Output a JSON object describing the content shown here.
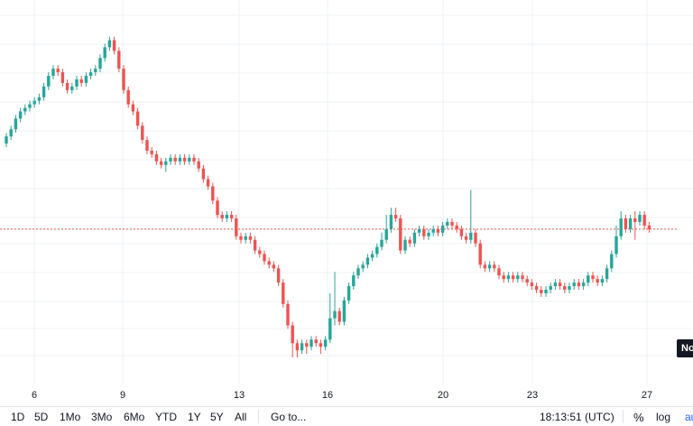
{
  "chart_data": {
    "type": "candlestick",
    "x_labels": [
      "6",
      "9",
      "13",
      "16",
      "20",
      "23",
      "27"
    ],
    "price_label_partial": "No",
    "y_scale": "normalized (price axis values not visible)",
    "candles": [
      [
        0.61,
        0.63,
        0.64,
        0.6
      ],
      [
        0.63,
        0.65,
        0.66,
        0.62
      ],
      [
        0.65,
        0.68,
        0.69,
        0.64
      ],
      [
        0.68,
        0.7,
        0.71,
        0.67
      ],
      [
        0.7,
        0.71,
        0.72,
        0.69
      ],
      [
        0.71,
        0.72,
        0.73,
        0.7
      ],
      [
        0.72,
        0.73,
        0.74,
        0.71
      ],
      [
        0.73,
        0.74,
        0.75,
        0.72
      ],
      [
        0.74,
        0.77,
        0.78,
        0.73
      ],
      [
        0.77,
        0.8,
        0.81,
        0.76
      ],
      [
        0.8,
        0.82,
        0.83,
        0.79
      ],
      [
        0.82,
        0.81,
        0.83,
        0.8
      ],
      [
        0.81,
        0.78,
        0.82,
        0.77
      ],
      [
        0.78,
        0.76,
        0.79,
        0.75
      ],
      [
        0.76,
        0.77,
        0.78,
        0.75
      ],
      [
        0.77,
        0.79,
        0.8,
        0.76
      ],
      [
        0.79,
        0.78,
        0.8,
        0.77
      ],
      [
        0.78,
        0.8,
        0.81,
        0.77
      ],
      [
        0.8,
        0.81,
        0.82,
        0.79
      ],
      [
        0.81,
        0.82,
        0.83,
        0.8
      ],
      [
        0.82,
        0.85,
        0.86,
        0.81
      ],
      [
        0.85,
        0.88,
        0.89,
        0.84
      ],
      [
        0.88,
        0.9,
        0.91,
        0.87
      ],
      [
        0.9,
        0.87,
        0.91,
        0.86
      ],
      [
        0.87,
        0.82,
        0.88,
        0.81
      ],
      [
        0.82,
        0.76,
        0.83,
        0.75
      ],
      [
        0.76,
        0.72,
        0.77,
        0.71
      ],
      [
        0.72,
        0.7,
        0.73,
        0.69
      ],
      [
        0.7,
        0.66,
        0.71,
        0.65
      ],
      [
        0.66,
        0.62,
        0.67,
        0.61
      ],
      [
        0.62,
        0.59,
        0.63,
        0.58
      ],
      [
        0.59,
        0.58,
        0.6,
        0.57
      ],
      [
        0.58,
        0.56,
        0.59,
        0.55
      ],
      [
        0.56,
        0.55,
        0.57,
        0.54
      ],
      [
        0.55,
        0.56,
        0.57,
        0.53
      ],
      [
        0.56,
        0.57,
        0.58,
        0.55
      ],
      [
        0.57,
        0.56,
        0.58,
        0.55
      ],
      [
        0.56,
        0.57,
        0.58,
        0.55
      ],
      [
        0.57,
        0.56,
        0.58,
        0.55
      ],
      [
        0.56,
        0.57,
        0.58,
        0.55
      ],
      [
        0.57,
        0.56,
        0.58,
        0.55
      ],
      [
        0.56,
        0.54,
        0.57,
        0.53
      ],
      [
        0.54,
        0.51,
        0.55,
        0.5
      ],
      [
        0.51,
        0.49,
        0.52,
        0.48
      ],
      [
        0.49,
        0.45,
        0.5,
        0.44
      ],
      [
        0.45,
        0.41,
        0.46,
        0.4
      ],
      [
        0.41,
        0.4,
        0.42,
        0.39
      ],
      [
        0.4,
        0.41,
        0.42,
        0.39
      ],
      [
        0.41,
        0.4,
        0.42,
        0.39
      ],
      [
        0.4,
        0.35,
        0.41,
        0.34
      ],
      [
        0.35,
        0.34,
        0.36,
        0.33
      ],
      [
        0.34,
        0.35,
        0.36,
        0.33
      ],
      [
        0.35,
        0.34,
        0.36,
        0.33
      ],
      [
        0.34,
        0.31,
        0.35,
        0.3
      ],
      [
        0.31,
        0.3,
        0.32,
        0.29
      ],
      [
        0.3,
        0.28,
        0.31,
        0.27
      ],
      [
        0.28,
        0.27,
        0.29,
        0.26
      ],
      [
        0.27,
        0.26,
        0.28,
        0.25
      ],
      [
        0.26,
        0.22,
        0.27,
        0.21
      ],
      [
        0.22,
        0.16,
        0.23,
        0.15
      ],
      [
        0.16,
        0.1,
        0.17,
        0.09
      ],
      [
        0.1,
        0.05,
        0.11,
        0.01
      ],
      [
        0.05,
        0.03,
        0.06,
        0.01
      ],
      [
        0.03,
        0.05,
        0.06,
        0.02
      ],
      [
        0.05,
        0.04,
        0.06,
        0.02
      ],
      [
        0.04,
        0.06,
        0.07,
        0.03
      ],
      [
        0.06,
        0.05,
        0.07,
        0.04
      ],
      [
        0.05,
        0.04,
        0.06,
        0.02
      ],
      [
        0.04,
        0.06,
        0.07,
        0.03
      ],
      [
        0.06,
        0.12,
        0.19,
        0.05
      ],
      [
        0.12,
        0.14,
        0.25,
        0.1
      ],
      [
        0.14,
        0.11,
        0.15,
        0.1
      ],
      [
        0.11,
        0.17,
        0.18,
        0.1
      ],
      [
        0.17,
        0.21,
        0.22,
        0.16
      ],
      [
        0.21,
        0.24,
        0.25,
        0.2
      ],
      [
        0.24,
        0.26,
        0.27,
        0.23
      ],
      [
        0.26,
        0.27,
        0.28,
        0.25
      ],
      [
        0.27,
        0.29,
        0.3,
        0.26
      ],
      [
        0.29,
        0.3,
        0.31,
        0.28
      ],
      [
        0.3,
        0.32,
        0.33,
        0.29
      ],
      [
        0.32,
        0.34,
        0.36,
        0.31
      ],
      [
        0.34,
        0.37,
        0.41,
        0.33
      ],
      [
        0.37,
        0.41,
        0.43,
        0.36
      ],
      [
        0.41,
        0.4,
        0.43,
        0.39
      ],
      [
        0.4,
        0.31,
        0.41,
        0.3
      ],
      [
        0.31,
        0.34,
        0.35,
        0.3
      ],
      [
        0.34,
        0.33,
        0.35,
        0.32
      ],
      [
        0.33,
        0.36,
        0.37,
        0.32
      ],
      [
        0.36,
        0.37,
        0.38,
        0.35
      ],
      [
        0.37,
        0.35,
        0.38,
        0.34
      ],
      [
        0.35,
        0.36,
        0.37,
        0.34
      ],
      [
        0.36,
        0.37,
        0.38,
        0.35
      ],
      [
        0.37,
        0.36,
        0.38,
        0.35
      ],
      [
        0.36,
        0.38,
        0.39,
        0.35
      ],
      [
        0.38,
        0.39,
        0.4,
        0.37
      ],
      [
        0.39,
        0.38,
        0.4,
        0.37
      ],
      [
        0.38,
        0.37,
        0.39,
        0.36
      ],
      [
        0.37,
        0.35,
        0.38,
        0.34
      ],
      [
        0.35,
        0.34,
        0.36,
        0.33
      ],
      [
        0.34,
        0.36,
        0.48,
        0.33
      ],
      [
        0.36,
        0.33,
        0.37,
        0.32
      ],
      [
        0.33,
        0.27,
        0.34,
        0.26
      ],
      [
        0.27,
        0.26,
        0.28,
        0.25
      ],
      [
        0.26,
        0.27,
        0.28,
        0.25
      ],
      [
        0.27,
        0.26,
        0.28,
        0.25
      ],
      [
        0.26,
        0.24,
        0.27,
        0.23
      ],
      [
        0.24,
        0.23,
        0.25,
        0.22
      ],
      [
        0.23,
        0.24,
        0.25,
        0.22
      ],
      [
        0.24,
        0.23,
        0.25,
        0.22
      ],
      [
        0.23,
        0.24,
        0.25,
        0.22
      ],
      [
        0.24,
        0.23,
        0.25,
        0.22
      ],
      [
        0.23,
        0.22,
        0.24,
        0.21
      ],
      [
        0.22,
        0.21,
        0.23,
        0.2
      ],
      [
        0.21,
        0.2,
        0.22,
        0.19
      ],
      [
        0.2,
        0.19,
        0.21,
        0.18
      ],
      [
        0.19,
        0.2,
        0.21,
        0.18
      ],
      [
        0.2,
        0.21,
        0.22,
        0.19
      ],
      [
        0.21,
        0.22,
        0.23,
        0.2
      ],
      [
        0.22,
        0.21,
        0.23,
        0.2
      ],
      [
        0.21,
        0.2,
        0.22,
        0.19
      ],
      [
        0.2,
        0.21,
        0.22,
        0.19
      ],
      [
        0.21,
        0.22,
        0.23,
        0.2
      ],
      [
        0.22,
        0.21,
        0.23,
        0.2
      ],
      [
        0.21,
        0.22,
        0.23,
        0.2
      ],
      [
        0.22,
        0.24,
        0.25,
        0.21
      ],
      [
        0.24,
        0.23,
        0.25,
        0.22
      ],
      [
        0.23,
        0.22,
        0.24,
        0.21
      ],
      [
        0.22,
        0.23,
        0.24,
        0.21
      ],
      [
        0.23,
        0.26,
        0.27,
        0.22
      ],
      [
        0.26,
        0.3,
        0.31,
        0.25
      ],
      [
        0.3,
        0.35,
        0.38,
        0.29
      ],
      [
        0.35,
        0.4,
        0.42,
        0.34
      ],
      [
        0.4,
        0.37,
        0.41,
        0.36
      ],
      [
        0.37,
        0.4,
        0.41,
        0.36
      ],
      [
        0.4,
        0.39,
        0.42,
        0.34
      ],
      [
        0.39,
        0.41,
        0.42,
        0.38
      ],
      [
        0.41,
        0.38,
        0.42,
        0.37
      ],
      [
        0.38,
        0.37,
        0.39,
        0.36
      ]
    ],
    "last_price_level": 0.37,
    "grid": true
  },
  "x_axis": {
    "labels": [
      "6",
      "9",
      "13",
      "16",
      "20",
      "23",
      "27"
    ]
  },
  "price_label": {
    "text": "No"
  },
  "toolbar": {
    "ranges": [
      "1D",
      "5D",
      "1Mo",
      "3Mo",
      "6Mo",
      "YTD",
      "1Y",
      "5Y",
      "All"
    ],
    "goto": "Go to...",
    "clock": "18:13:51 (UTC)",
    "percent": "%",
    "log": "log",
    "auto": "au"
  },
  "colors": {
    "up": "#26a69a",
    "down": "#ef5350",
    "grid": "#eef0f4",
    "price_line": "#ef5350",
    "price_tag_bg": "#131722"
  }
}
